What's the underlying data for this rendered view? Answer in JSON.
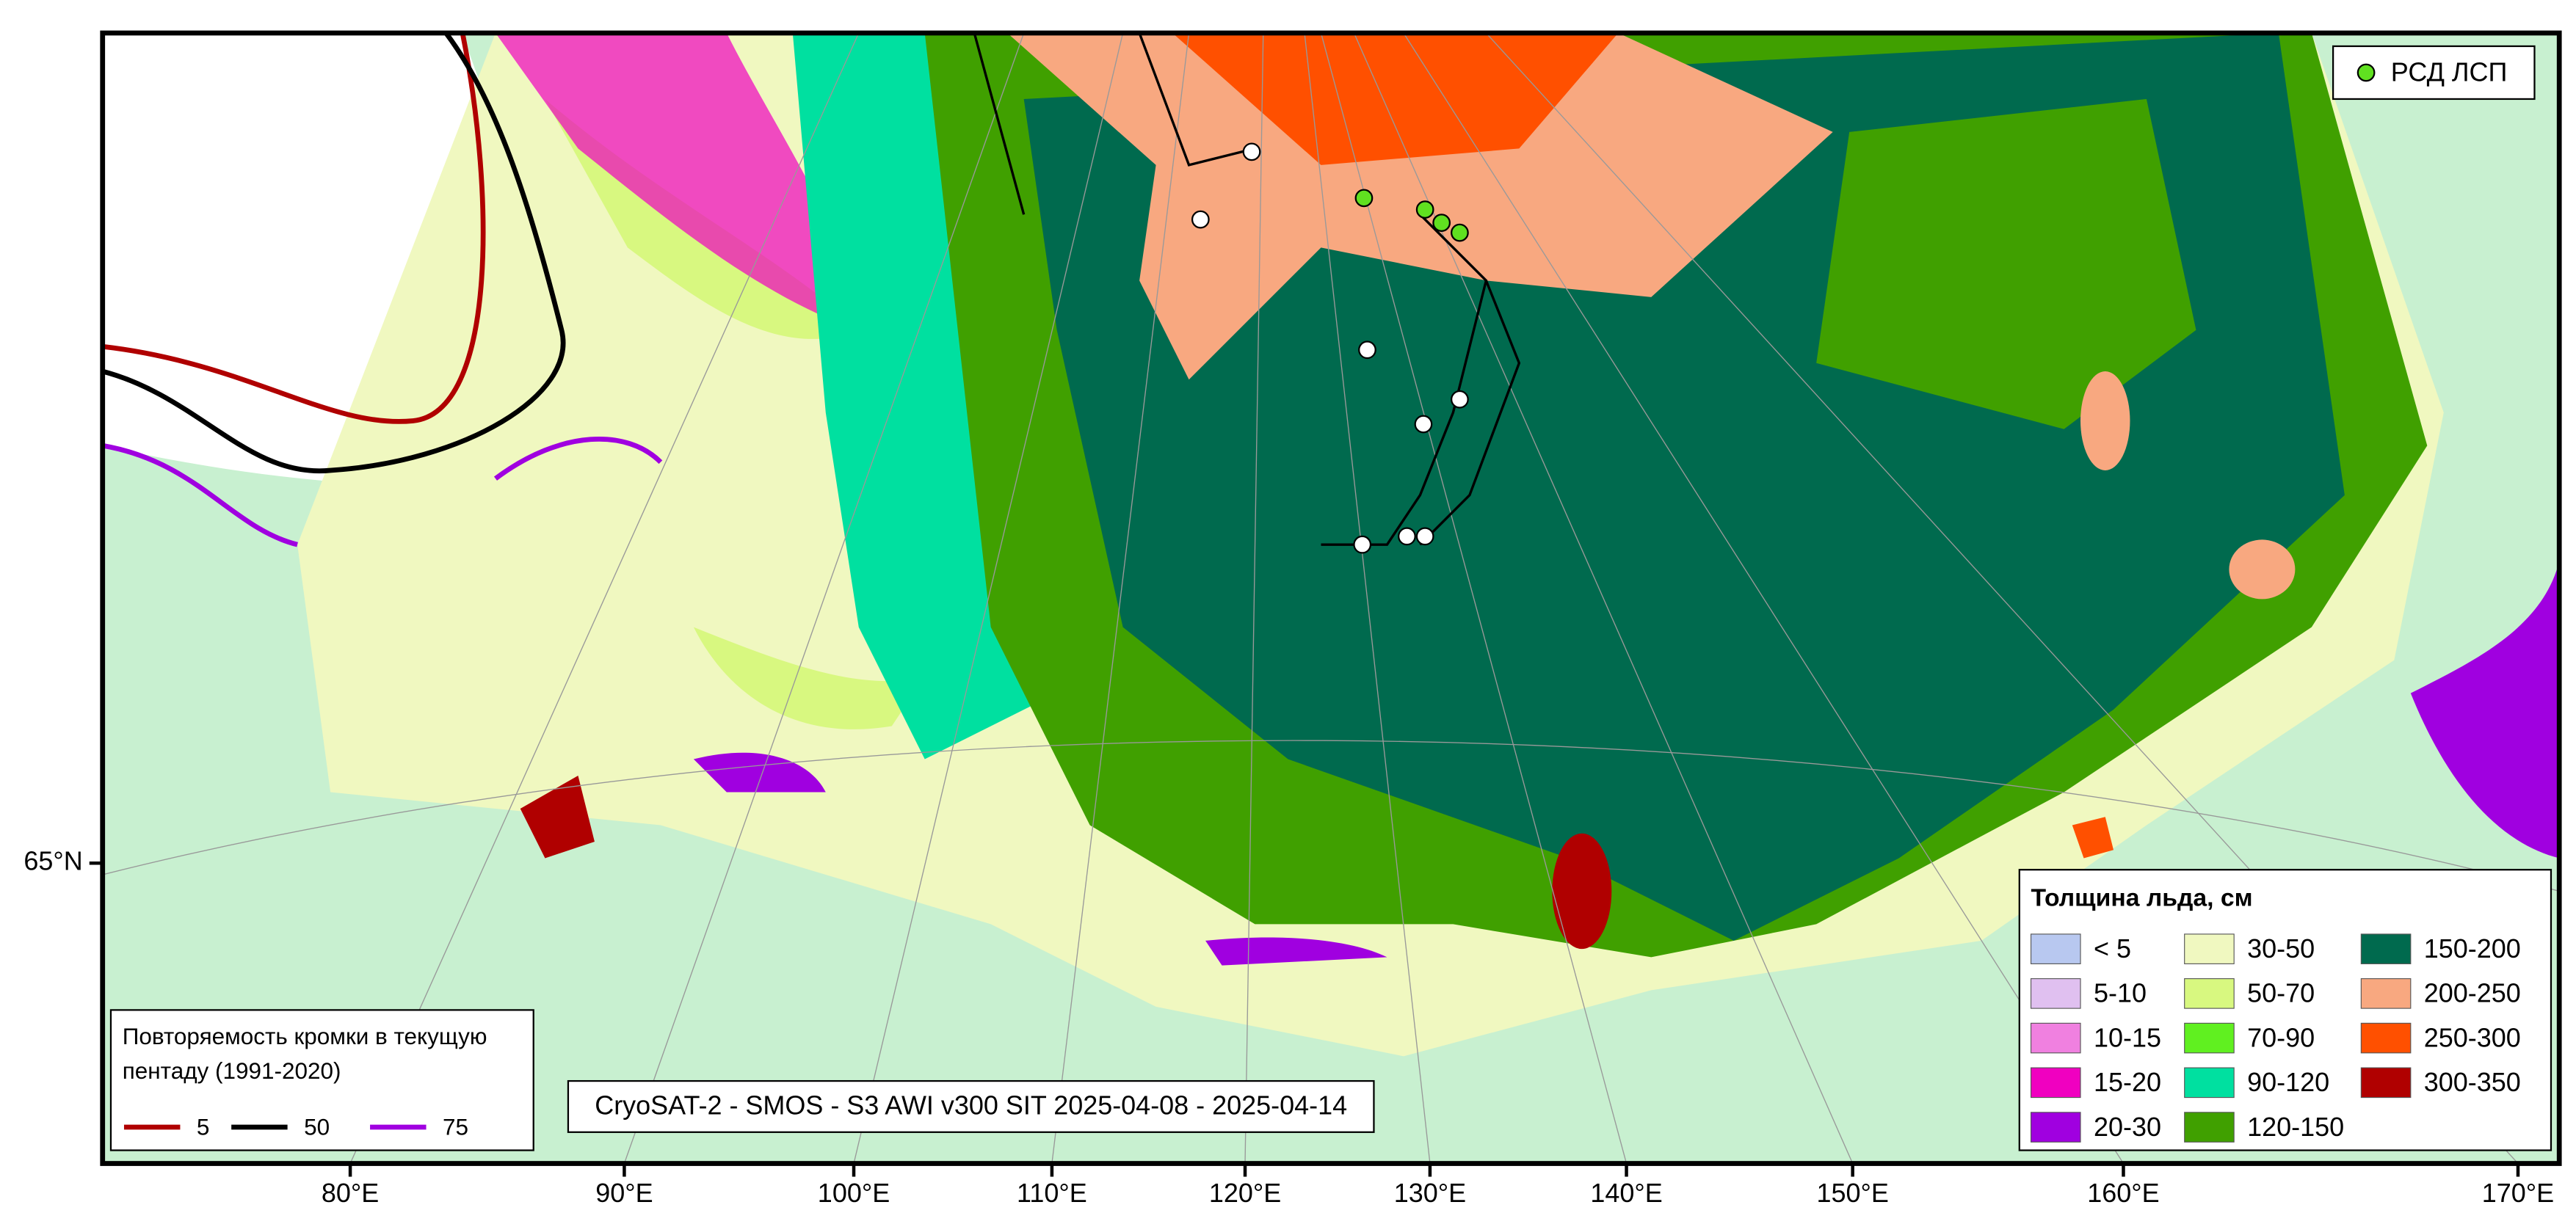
{
  "map": {
    "product_label": "CryoSAT-2 - SMOS - S3 AWI v300 SIT 2025-04-08 - 2025-04-14",
    "station_legend": "РСД ЛСП",
    "lon_labels": [
      "80°E",
      "90°E",
      "100°E",
      "110°E",
      "120°E",
      "130°E",
      "140°E",
      "150°E",
      "160°E",
      "170°E"
    ],
    "lat_labels": [
      "65°N"
    ],
    "thickness_legend": {
      "title": "Толщина льда, см",
      "items": [
        {
          "label": "< 5",
          "color": "#b8c8f0"
        },
        {
          "label": "5-10",
          "color": "#e0c0f0"
        },
        {
          "label": "10-15",
          "color": "#f080e0"
        },
        {
          "label": "15-20",
          "color": "#f000c0"
        },
        {
          "label": "20-30",
          "color": "#a000e0"
        },
        {
          "label": "30-50",
          "color": "#f0f8c0"
        },
        {
          "label": "50-70",
          "color": "#d8f880"
        },
        {
          "label": "70-90",
          "color": "#60f020"
        },
        {
          "label": "90-120",
          "color": "#00e0a0"
        },
        {
          "label": "120-150",
          "color": "#40a000"
        },
        {
          "label": "150-200",
          "color": "#006a4e"
        },
        {
          "label": "200-250",
          "color": "#f8a880"
        },
        {
          "label": "250-300",
          "color": "#ff5000"
        },
        {
          "label": "300-350",
          "color": "#b00000"
        }
      ]
    },
    "edge_legend": {
      "title_lines": [
        "Повторяемость кромки в текущую",
        "пентаду (1991-2020)"
      ],
      "items": [
        {
          "label": "5",
          "color": "#b00000"
        },
        {
          "label": "50",
          "color": "#000000"
        },
        {
          "label": "75",
          "color": "#a000e0"
        }
      ]
    }
  }
}
